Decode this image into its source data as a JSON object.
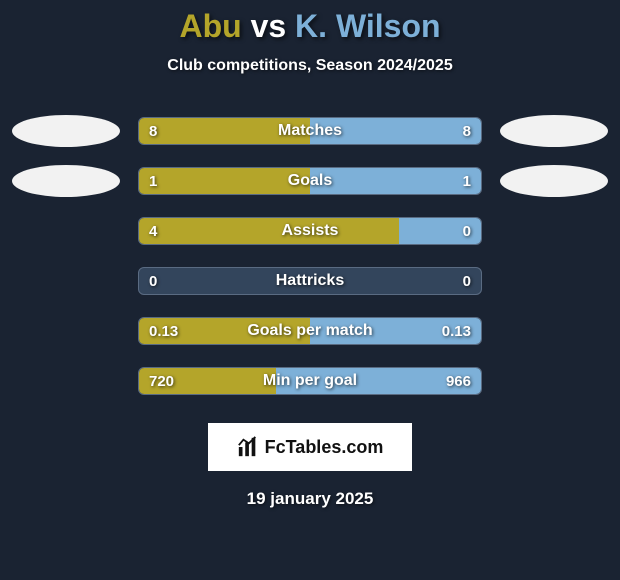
{
  "header": {
    "player1": "Abu",
    "vs": "vs",
    "player2": "K. Wilson",
    "player1_color": "#b4a52a",
    "vs_color": "#ffffff",
    "player2_color": "#7db0d8",
    "subtitle": "Club competitions, Season 2024/2025"
  },
  "colors": {
    "left_fill": "#b4a52a",
    "right_fill": "#7db0d8",
    "neutral_fill": "#33455c",
    "background": "#1a2332",
    "ellipse": "#f2f2f2"
  },
  "rows": [
    {
      "label": "Matches",
      "left_val": "8",
      "right_val": "8",
      "left_pct": 50,
      "right_pct": 50,
      "show_ellipses": true
    },
    {
      "label": "Goals",
      "left_val": "1",
      "right_val": "1",
      "left_pct": 50,
      "right_pct": 50,
      "show_ellipses": true
    },
    {
      "label": "Assists",
      "left_val": "4",
      "right_val": "0",
      "left_pct": 76,
      "right_pct": 24,
      "show_ellipses": false
    },
    {
      "label": "Hattricks",
      "left_val": "0",
      "right_val": "0",
      "left_pct": 0,
      "right_pct": 0,
      "show_ellipses": false
    },
    {
      "label": "Goals per match",
      "left_val": "0.13",
      "right_val": "0.13",
      "left_pct": 50,
      "right_pct": 50,
      "show_ellipses": false
    },
    {
      "label": "Min per goal",
      "left_val": "720",
      "right_val": "966",
      "left_pct": 40,
      "right_pct": 60,
      "show_ellipses": false
    }
  ],
  "badge": {
    "text": "FcTables.com"
  },
  "date": "19 january 2025"
}
